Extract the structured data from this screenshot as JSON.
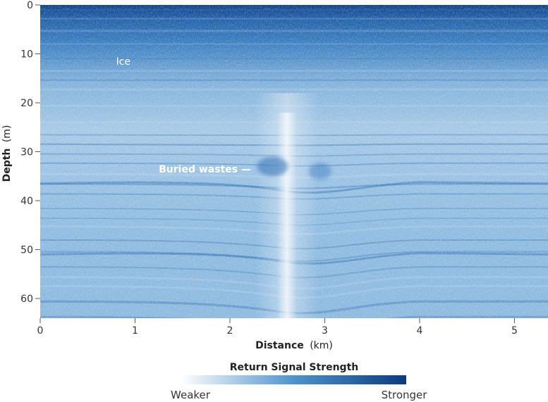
{
  "chart_data": {
    "type": "heatmap",
    "title": "",
    "xlabel": "Distance (km)",
    "xlabel_main": "Distance",
    "xlabel_unit": "(km)",
    "ylabel": "Depth (m)",
    "ylabel_main": "Depth",
    "ylabel_unit": "(m)",
    "xlim": [
      0,
      5.4
    ],
    "ylim": [
      0,
      65
    ],
    "y_inverted": true,
    "x_ticks": [
      0,
      1,
      2,
      3,
      4,
      5
    ],
    "y_ticks": [
      0,
      10,
      20,
      30,
      40,
      50,
      60
    ],
    "grid": false,
    "colorscale": {
      "title": "Return Signal Strength",
      "low_label": "Weaker",
      "high_label": "Stronger",
      "low_color": "#ffffff",
      "high_color": "#0b3a7e"
    },
    "annotations": [
      {
        "text": "Ice",
        "x": 0.8,
        "y": 11.5,
        "bold": false
      },
      {
        "text": "Buried wastes —",
        "x": 1.25,
        "y": 33.5,
        "bold": true
      }
    ],
    "features": {
      "strong_band_depth_range": [
        0,
        15
      ],
      "vertical_disturbance_x": 2.6,
      "buried_wastes_position": [
        2.45,
        33
      ]
    }
  }
}
